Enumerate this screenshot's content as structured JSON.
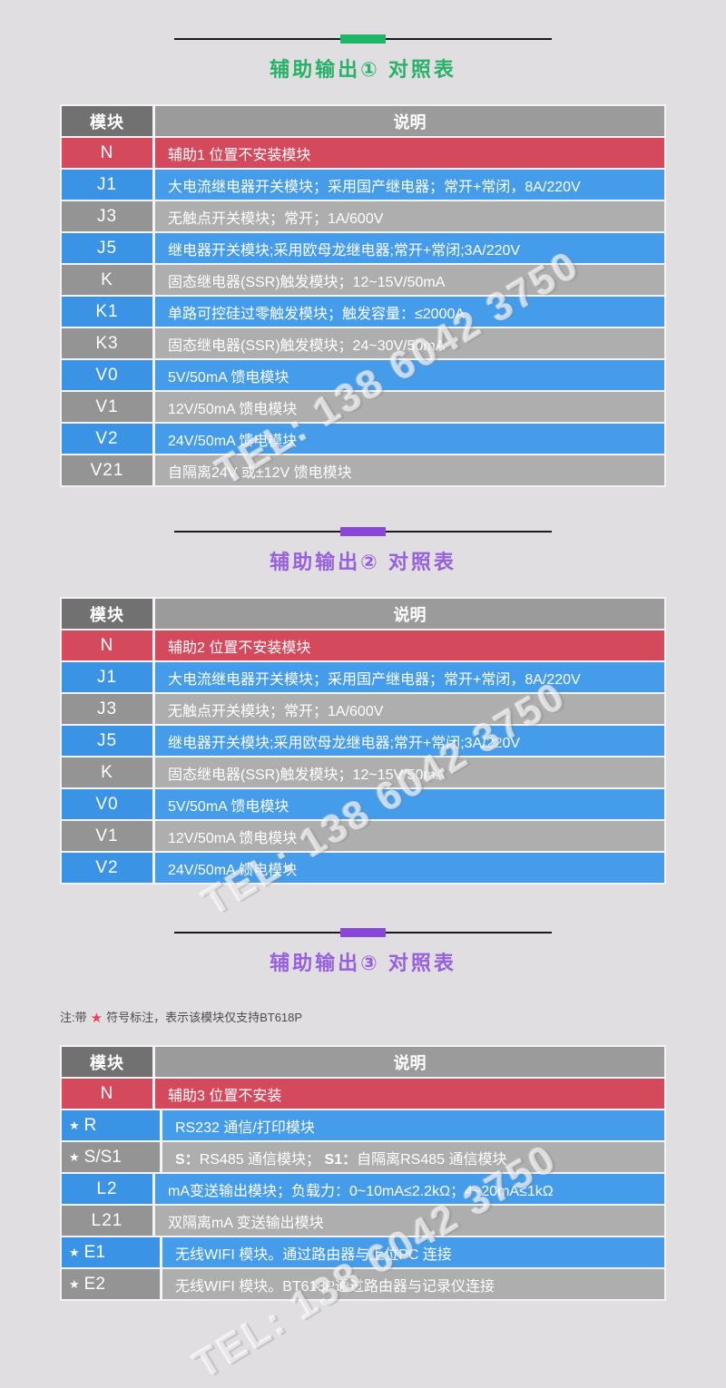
{
  "watermark": {
    "text": "TEL: 138 6042 3750"
  },
  "icons": {
    "star": "★"
  },
  "theme": {
    "page_bg": "#e0dee1",
    "gap": "#f4f2f4",
    "divider_line": "#1b1b1b",
    "header_module_bg": "#717171",
    "header_desc_bg": "#9b9b9b",
    "red": "#d4495c",
    "blue_module": "#3b93e6",
    "blue_desc": "#459ceb",
    "gray_module": "#949494",
    "gray_desc": "#aeaeae",
    "note_star": "#ee4056"
  },
  "note": {
    "prefix": "注:带",
    "suffix": "符号标注，表示该模块仅支持BT618P"
  },
  "sections": [
    {
      "title": "辅助输出① 对照表",
      "accent": "#1db567",
      "title_color": "#27b268",
      "headers": [
        "模块",
        "说明"
      ],
      "rows": [
        {
          "module": "N",
          "star": false,
          "color": "red",
          "desc": [
            {
              "t": "辅助1 位置不安装模块"
            }
          ]
        },
        {
          "module": "J1",
          "star": false,
          "color": "blue",
          "desc": [
            {
              "t": "大电流继电器开关模块；采用国产继电器；常开+常闭，8A/220V"
            }
          ]
        },
        {
          "module": "J3",
          "star": false,
          "color": "gray",
          "desc": [
            {
              "t": "无触点开关模块；常开；1A/600V"
            }
          ]
        },
        {
          "module": "J5",
          "star": false,
          "color": "blue",
          "desc": [
            {
              "t": "继电器开关模块;采用欧母龙继电器;常开+常闭;3A/220V"
            }
          ]
        },
        {
          "module": "K",
          "star": false,
          "color": "gray",
          "desc": [
            {
              "t": "固态继电器(SSR)触发模块；12~15V/50mA"
            }
          ]
        },
        {
          "module": "K1",
          "star": false,
          "color": "blue",
          "desc": [
            {
              "t": "单路可控硅过零触发模块；触发容量：≤2000A"
            }
          ]
        },
        {
          "module": "K3",
          "star": false,
          "color": "gray",
          "desc": [
            {
              "t": "固态继电器(SSR)触发模块；24~30V/50mA"
            }
          ]
        },
        {
          "module": "V0",
          "star": false,
          "color": "blue",
          "desc": [
            {
              "t": "5V/50mA 馈电模块"
            }
          ]
        },
        {
          "module": "V1",
          "star": false,
          "color": "gray",
          "desc": [
            {
              "t": "12V/50mA 馈电模块"
            }
          ]
        },
        {
          "module": "V2",
          "star": false,
          "color": "blue",
          "desc": [
            {
              "t": "24V/50mA 馈电模块"
            }
          ]
        },
        {
          "module": "V21",
          "star": false,
          "color": "gray",
          "desc": [
            {
              "t": "自隔离24V 或±12V 馈电模块"
            }
          ]
        }
      ]
    },
    {
      "title": "辅助输出② 对照表",
      "accent": "#8a46d6",
      "title_color": "#9760dc",
      "headers": [
        "模块",
        "说明"
      ],
      "rows": [
        {
          "module": "N",
          "star": false,
          "color": "red",
          "desc": [
            {
              "t": "辅助2 位置不安装模块"
            }
          ]
        },
        {
          "module": "J1",
          "star": false,
          "color": "blue",
          "desc": [
            {
              "t": "大电流继电器开关模块；采用国产继电器；常开+常闭，8A/220V"
            }
          ]
        },
        {
          "module": "J3",
          "star": false,
          "color": "gray",
          "desc": [
            {
              "t": "无触点开关模块；常开；1A/600V"
            }
          ]
        },
        {
          "module": "J5",
          "star": false,
          "color": "blue",
          "desc": [
            {
              "t": "继电器开关模块;采用欧母龙继电器;常开+常闭;3A/220V"
            }
          ]
        },
        {
          "module": "K",
          "star": false,
          "color": "gray",
          "desc": [
            {
              "t": "固态继电器(SSR)触发模块；12~15V/50mA"
            }
          ]
        },
        {
          "module": "V0",
          "star": false,
          "color": "blue",
          "desc": [
            {
              "t": "5V/50mA 馈电模块"
            }
          ]
        },
        {
          "module": "V1",
          "star": false,
          "color": "gray",
          "desc": [
            {
              "t": "12V/50mA 馈电模块"
            }
          ]
        },
        {
          "module": "V2",
          "star": false,
          "color": "blue",
          "desc": [
            {
              "t": "24V/50mA 馈电模块"
            }
          ]
        }
      ]
    },
    {
      "title": "辅助输出③ 对照表",
      "accent": "#8a46d6",
      "title_color": "#9760dc",
      "headers": [
        "模块",
        "说明"
      ],
      "rows": [
        {
          "module": "N",
          "star": false,
          "color": "red",
          "desc": [
            {
              "t": "辅助3 位置不安装"
            }
          ]
        },
        {
          "module": "R",
          "star": true,
          "color": "blue",
          "desc": [
            {
              "t": "RS232 通信/打印模块"
            }
          ]
        },
        {
          "module": "S/S1",
          "star": true,
          "color": "gray",
          "desc": [
            {
              "t": "S：",
              "b": true
            },
            {
              "t": "RS485 通信模块；  "
            },
            {
              "t": "S1：",
              "b": true
            },
            {
              "t": "自隔离RS485 通信模块"
            }
          ]
        },
        {
          "module": "L2",
          "star": false,
          "color": "blue",
          "desc": [
            {
              "t": "mA变送输出模块；负载力：0~10mA≤2.2kΩ；4~20mA≤1kΩ"
            }
          ]
        },
        {
          "module": "L21",
          "star": false,
          "color": "gray",
          "desc": [
            {
              "t": "双隔离mA 变送输出模块"
            }
          ]
        },
        {
          "module": "E1",
          "star": true,
          "color": "blue",
          "desc": [
            {
              "t": "无线WIFI 模块。通过路由器与上位PC 连接"
            }
          ]
        },
        {
          "module": "E2",
          "star": true,
          "color": "gray",
          "desc": [
            {
              "t": "无线WIFI 模块。BT618P通过路由器与记录仪连接"
            }
          ]
        }
      ]
    }
  ]
}
